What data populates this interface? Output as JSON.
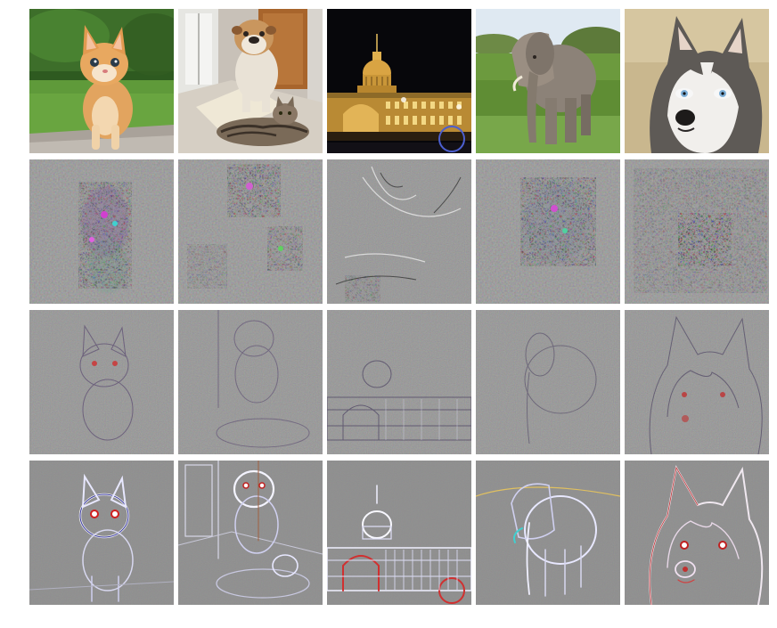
{
  "figure": {
    "rows": [
      {
        "row": "original-photos",
        "cells": [
          {
            "subject": "kitten",
            "icon": "kitten-photo"
          },
          {
            "subject": "bulldog-and-cat",
            "icon": "dog-cat-photo"
          },
          {
            "subject": "domed-building-at-night",
            "icon": "building-photo"
          },
          {
            "subject": "elephant",
            "icon": "elephant-photo"
          },
          {
            "subject": "husky",
            "icon": "husky-photo"
          }
        ]
      },
      {
        "row": "noisy-saliency-maps",
        "cells": [
          {
            "subject": "kitten",
            "icon": "noisy-map"
          },
          {
            "subject": "bulldog-and-cat",
            "icon": "noisy-map"
          },
          {
            "subject": "domed-building-at-night",
            "icon": "noisy-map"
          },
          {
            "subject": "elephant",
            "icon": "noisy-map"
          },
          {
            "subject": "husky",
            "icon": "noisy-map"
          }
        ]
      },
      {
        "row": "fine-texture-maps",
        "cells": [
          {
            "subject": "kitten",
            "icon": "texture-map"
          },
          {
            "subject": "bulldog-and-cat",
            "icon": "texture-map"
          },
          {
            "subject": "domed-building-at-night",
            "icon": "texture-map"
          },
          {
            "subject": "elephant",
            "icon": "texture-map"
          },
          {
            "subject": "husky",
            "icon": "texture-map"
          }
        ]
      },
      {
        "row": "edge-maps",
        "cells": [
          {
            "subject": "kitten",
            "icon": "edge-map"
          },
          {
            "subject": "bulldog-and-cat",
            "icon": "edge-map"
          },
          {
            "subject": "domed-building-at-night",
            "icon": "edge-map"
          },
          {
            "subject": "elephant",
            "icon": "edge-map"
          },
          {
            "subject": "husky",
            "icon": "edge-map"
          }
        ]
      }
    ],
    "colors": {
      "background": "#ffffff",
      "map_gray": "#858585",
      "grass": "#5f9a3a",
      "night_sky": "#07070b",
      "building_light": "#d9a443",
      "kitten_orange": "#e2a45f",
      "elephant_gray": "#8c8278",
      "husky_bg": "#c9b78e"
    }
  }
}
